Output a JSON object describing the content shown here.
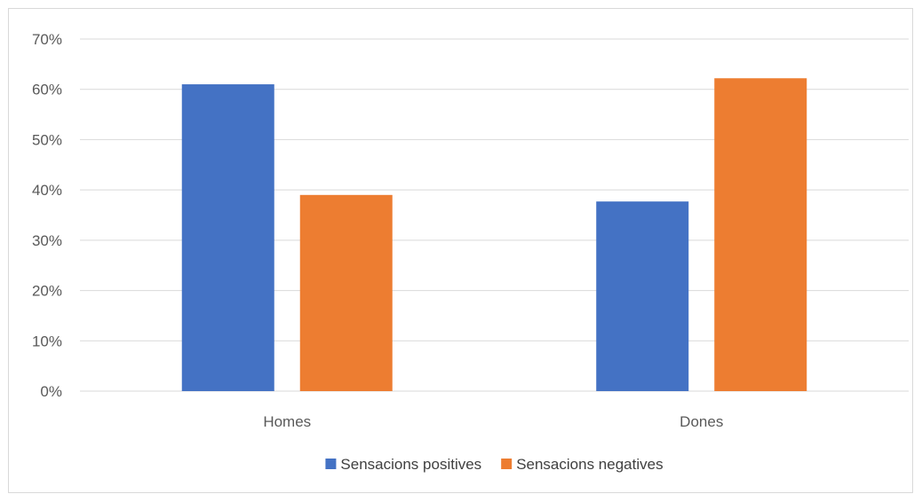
{
  "chart_data": {
    "type": "bar",
    "title": "",
    "xlabel": "",
    "ylabel": "",
    "categories": [
      "Homes",
      "Dones"
    ],
    "series": [
      {
        "name": "Sensacions positives",
        "values": [
          61,
          37.7
        ],
        "color": "#4472C4"
      },
      {
        "name": "Sensacions negatives",
        "values": [
          39,
          62.2
        ],
        "color": "#ED7D31"
      }
    ],
    "ylim": [
      0,
      70
    ],
    "yticks": [
      0,
      10,
      20,
      30,
      40,
      50,
      60,
      70
    ],
    "ytick_labels": [
      "0%",
      "10%",
      "20%",
      "30%",
      "40%",
      "50%",
      "60%",
      "70%"
    ],
    "grid": true,
    "gridline_color": "#d9d9d9",
    "legend_position": "bottom"
  }
}
